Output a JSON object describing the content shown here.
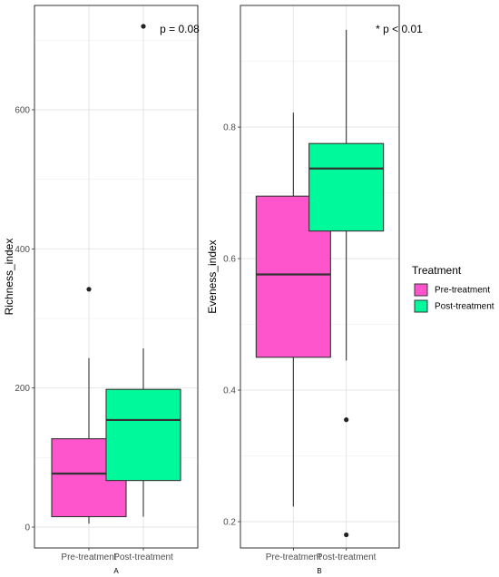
{
  "chart_data": [
    {
      "type": "box",
      "panel_tag": "A",
      "xlabel": "",
      "ylabel": "Richness_index",
      "categories": [
        "Pre-treatment",
        "Post-treatment"
      ],
      "yticks": [
        0,
        200,
        400,
        600
      ],
      "ylim": [
        -30,
        750
      ],
      "annotation": "p = 0.08",
      "grid": true,
      "series": [
        {
          "name": "Pre-treatment",
          "color": "#ff55cc",
          "min": 5,
          "q1": 15,
          "median": 77,
          "q3": 127,
          "max": 243,
          "outliers": [
            342
          ]
        },
        {
          "name": "Post-treatment",
          "color": "#00f99a",
          "min": 15,
          "q1": 67,
          "median": 154,
          "q3": 198,
          "max": 257,
          "outliers": [
            720
          ]
        }
      ]
    },
    {
      "type": "box",
      "panel_tag": "B",
      "xlabel": "",
      "ylabel": "Eveness_index",
      "categories": [
        "Pre-treatment",
        "Post-treatment"
      ],
      "yticks": [
        0.2,
        0.4,
        0.6,
        0.8
      ],
      "ylim": [
        0.16,
        0.985
      ],
      "annotation": "* p < 0.01",
      "grid": true,
      "series": [
        {
          "name": "Pre-treatment",
          "color": "#ff55cc",
          "min": 0.223,
          "q1": 0.45,
          "median": 0.576,
          "q3": 0.695,
          "max": 0.822,
          "outliers": []
        },
        {
          "name": "Post-treatment",
          "color": "#00f99a",
          "min": 0.445,
          "q1": 0.642,
          "median": 0.737,
          "q3": 0.775,
          "max": 0.948,
          "outliers": [
            0.355,
            0.18
          ]
        }
      ]
    }
  ],
  "legend": {
    "title": "Treatment",
    "placement": "right",
    "entries": [
      {
        "label": "Pre-treatment",
        "color": "#ff55cc"
      },
      {
        "label": "Post-treatment",
        "color": "#00f99a"
      }
    ]
  }
}
